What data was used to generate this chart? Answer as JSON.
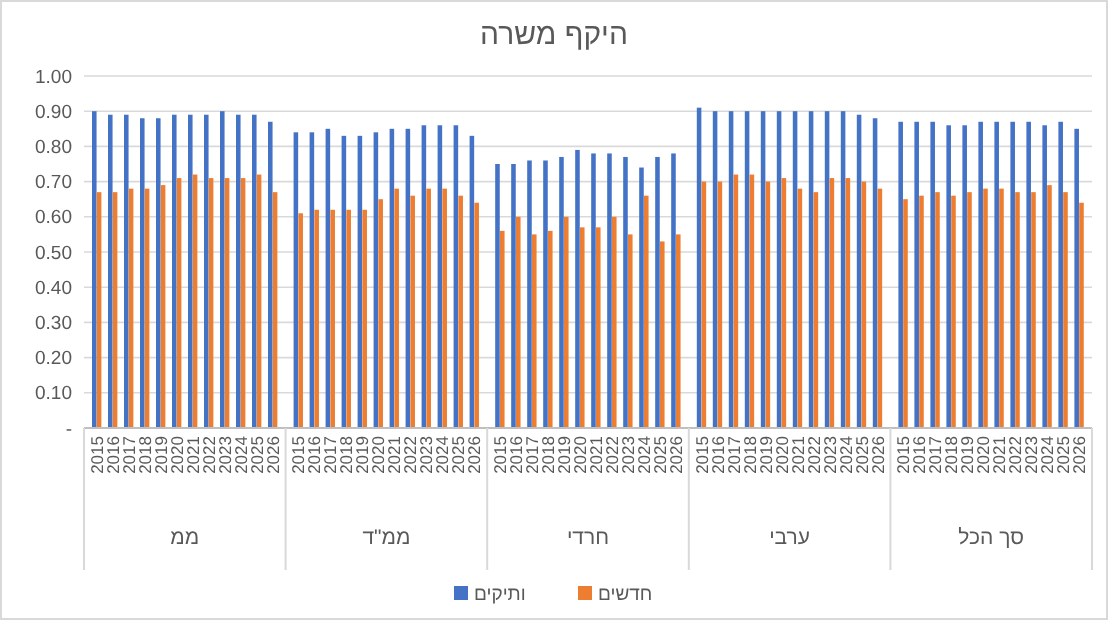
{
  "chart_data": {
    "type": "bar",
    "title": "היקף משרה",
    "categories": [
      "2015",
      "2016",
      "2017",
      "2018",
      "2019",
      "2020",
      "2021",
      "2022",
      "2023",
      "2024",
      "2025",
      "2026",
      "2015",
      "2016",
      "2017",
      "2018",
      "2019",
      "2020",
      "2021",
      "2022",
      "2023",
      "2024",
      "2025",
      "2026",
      "2015",
      "2016",
      "2017",
      "2018",
      "2019",
      "2020",
      "2021",
      "2022",
      "2023",
      "2024",
      "2025",
      "2026",
      "2015",
      "2016",
      "2017",
      "2018",
      "2019",
      "2020",
      "2021",
      "2022",
      "2023",
      "2024",
      "2025",
      "2026",
      "2015",
      "2016",
      "2017",
      "2018",
      "2019",
      "2020",
      "2021",
      "2022",
      "2023",
      "2024",
      "2025",
      "2026"
    ],
    "annotations": [
      "ממ",
      "ממ\"ד",
      "חרדי",
      "ערבי",
      "סך הכל"
    ],
    "series": [
      {
        "name": "ותיקים",
        "color": "#4472c4",
        "values": [
          0.9,
          0.89,
          0.89,
          0.88,
          0.88,
          0.89,
          0.89,
          0.89,
          0.9,
          0.89,
          0.89,
          0.87,
          0.84,
          0.84,
          0.85,
          0.83,
          0.83,
          0.84,
          0.85,
          0.85,
          0.86,
          0.86,
          0.86,
          0.83,
          0.75,
          0.75,
          0.76,
          0.76,
          0.77,
          0.79,
          0.78,
          0.78,
          0.77,
          0.74,
          0.77,
          0.78,
          0.91,
          0.9,
          0.9,
          0.9,
          0.9,
          0.9,
          0.9,
          0.9,
          0.9,
          0.9,
          0.89,
          0.88,
          0.87,
          0.87,
          0.87,
          0.86,
          0.86,
          0.87,
          0.87,
          0.87,
          0.87,
          0.86,
          0.87,
          0.85
        ]
      },
      {
        "name": "חדשים",
        "color": "#ed7d31",
        "values": [
          0.67,
          0.67,
          0.68,
          0.68,
          0.69,
          0.71,
          0.72,
          0.71,
          0.71,
          0.71,
          0.72,
          0.67,
          0.61,
          0.62,
          0.62,
          0.62,
          0.62,
          0.65,
          0.68,
          0.66,
          0.68,
          0.68,
          0.66,
          0.64,
          0.56,
          0.6,
          0.55,
          0.56,
          0.6,
          0.57,
          0.57,
          0.6,
          0.55,
          0.66,
          0.53,
          0.55,
          0.7,
          0.7,
          0.72,
          0.72,
          0.7,
          0.71,
          0.68,
          0.67,
          0.71,
          0.71,
          0.7,
          0.68,
          0.65,
          0.66,
          0.67,
          0.66,
          0.67,
          0.68,
          0.68,
          0.67,
          0.67,
          0.69,
          0.67,
          0.64
        ]
      }
    ],
    "ylim": [
      0,
      1
    ],
    "yticks": [
      {
        "value": 0,
        "label": "-"
      },
      {
        "value": 0.1,
        "label": "0.10"
      },
      {
        "value": 0.2,
        "label": "0.20"
      },
      {
        "value": 0.3,
        "label": "0.30"
      },
      {
        "value": 0.4,
        "label": "0.40"
      },
      {
        "value": 0.5,
        "label": "0.50"
      },
      {
        "value": 0.6,
        "label": "0.60"
      },
      {
        "value": 0.7,
        "label": "0.70"
      },
      {
        "value": 0.8,
        "label": "0.80"
      },
      {
        "value": 0.9,
        "label": "0.90"
      },
      {
        "value": 1,
        "label": "1.00"
      }
    ],
    "grid": "y",
    "legend": "bottom"
  }
}
